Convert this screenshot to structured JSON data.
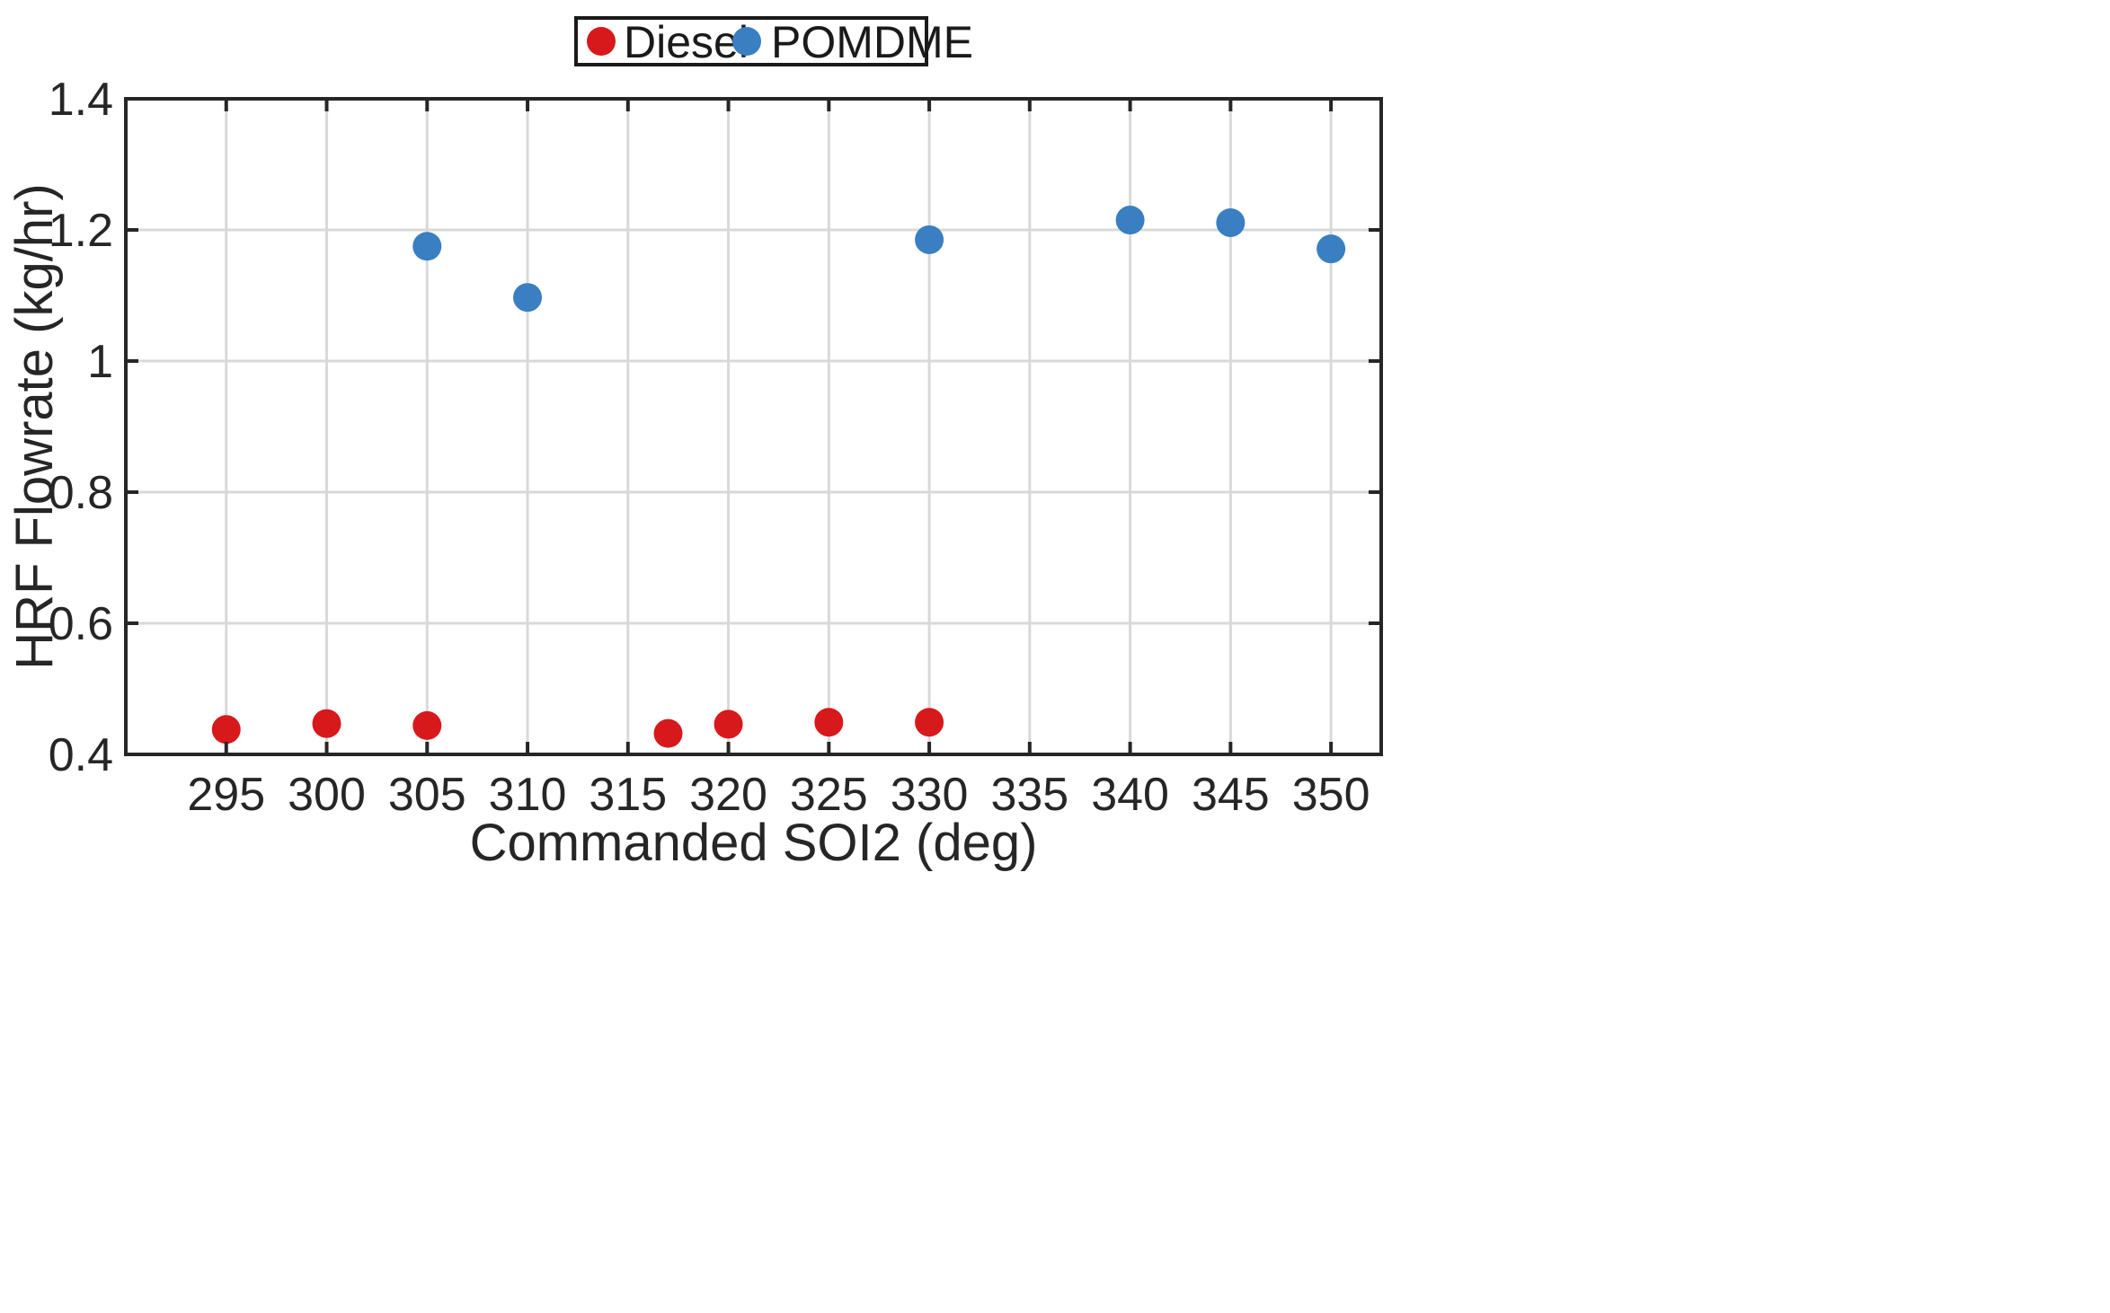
{
  "chart_data": {
    "type": "scatter",
    "title": "",
    "xlabel": "Commanded SOI2 (deg)",
    "ylabel": "HRF Flowrate (kg/hr)",
    "xlim": [
      290,
      352.5
    ],
    "ylim": [
      0.4,
      1.4
    ],
    "xticks": [
      295,
      300,
      305,
      310,
      315,
      320,
      325,
      330,
      335,
      340,
      345,
      350
    ],
    "yticks": [
      0.4,
      0.6,
      0.8,
      1,
      1.2,
      1.4
    ],
    "ytick_labels": [
      "0.4",
      "0.6",
      "0.8",
      "1",
      "1.2",
      "1.4"
    ],
    "grid": true,
    "legend_position": "top-center",
    "series": [
      {
        "name": "Diesel",
        "color": "#d7191c",
        "x": [
          295,
          300,
          305,
          317,
          320,
          325,
          330
        ],
        "y": [
          0.438,
          0.447,
          0.444,
          0.432,
          0.446,
          0.449,
          0.449
        ]
      },
      {
        "name": "POMDME",
        "color": "#3a7fc1",
        "x": [
          305,
          310,
          330,
          340,
          345,
          350
        ],
        "y": [
          1.175,
          1.097,
          1.185,
          1.215,
          1.211,
          1.171
        ]
      }
    ]
  }
}
